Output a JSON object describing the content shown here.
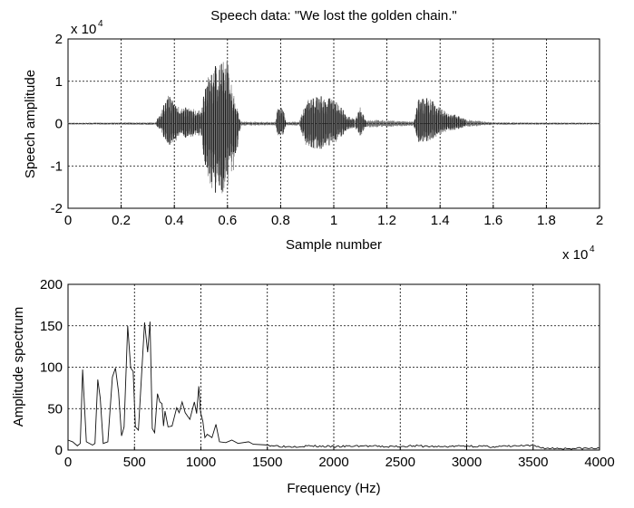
{
  "chart_data": [
    {
      "type": "line",
      "title": "Speech data: \"We lost the golden chain.\"",
      "xlabel": "Sample number",
      "ylabel": "Speech amplitude",
      "x_multiplier": "x 10",
      "x_multiplier_exp": "4",
      "y_multiplier": "x 10",
      "y_multiplier_exp": "4",
      "xlim": [
        0,
        2
      ],
      "ylim": [
        -2,
        2
      ],
      "xticks": [
        "0",
        "0.2",
        "0.4",
        "0.6",
        "0.8",
        "1",
        "1.2",
        "1.4",
        "1.6",
        "1.8",
        "2"
      ],
      "yticks": [
        "-2",
        "-1",
        "0",
        "1",
        "2"
      ],
      "grid": true,
      "envelope_note_units": "x in 10^4 samples, amplitude in 10^4",
      "envelope": [
        [
          0.0,
          0.02,
          -0.02
        ],
        [
          0.33,
          0.03,
          -0.03
        ],
        [
          0.35,
          0.3,
          -0.2
        ],
        [
          0.38,
          0.7,
          -0.55
        ],
        [
          0.42,
          0.4,
          -0.35
        ],
        [
          0.48,
          0.35,
          -0.3
        ],
        [
          0.5,
          0.3,
          -0.3
        ],
        [
          0.52,
          1.0,
          -1.2
        ],
        [
          0.56,
          1.5,
          -1.8
        ],
        [
          0.6,
          1.55,
          -1.55
        ],
        [
          0.63,
          0.5,
          -1.0
        ],
        [
          0.65,
          0.05,
          -0.05
        ],
        [
          0.78,
          0.04,
          -0.04
        ],
        [
          0.79,
          0.4,
          -0.3
        ],
        [
          0.81,
          0.4,
          -0.3
        ],
        [
          0.82,
          0.04,
          -0.04
        ],
        [
          0.87,
          0.05,
          -0.05
        ],
        [
          0.9,
          0.6,
          -0.6
        ],
        [
          0.95,
          0.65,
          -0.6
        ],
        [
          1.0,
          0.6,
          -0.5
        ],
        [
          1.05,
          0.2,
          -0.15
        ],
        [
          1.08,
          0.1,
          -0.1
        ],
        [
          1.1,
          0.4,
          -0.3
        ],
        [
          1.12,
          0.1,
          -0.1
        ],
        [
          1.3,
          0.05,
          -0.05
        ],
        [
          1.32,
          0.6,
          -0.45
        ],
        [
          1.36,
          0.6,
          -0.4
        ],
        [
          1.42,
          0.3,
          -0.2
        ],
        [
          1.5,
          0.1,
          -0.08
        ],
        [
          1.6,
          0.03,
          -0.03
        ],
        [
          2.0,
          0.02,
          -0.02
        ]
      ]
    },
    {
      "type": "line",
      "xlabel": "Frequency (Hz)",
      "ylabel": "Amplitude spectrum",
      "xlim": [
        0,
        4000
      ],
      "ylim": [
        0,
        200
      ],
      "xticks": [
        "0",
        "500",
        "1000",
        "1500",
        "2000",
        "2500",
        "3000",
        "3500",
        "4000"
      ],
      "yticks": [
        "0",
        "50",
        "100",
        "150",
        "200"
      ],
      "grid": true,
      "x": [
        0,
        35,
        70,
        92,
        110,
        138,
        184,
        203,
        224,
        242,
        265,
        300,
        334,
        357,
        380,
        403,
        422,
        449,
        472,
        490,
        507,
        530,
        576,
        599,
        617,
        634,
        652,
        673,
        691,
        707,
        719,
        730,
        753,
        783,
        818,
        836,
        859,
        882,
        917,
        951,
        968,
        984,
        998,
        1014,
        1030,
        1048,
        1083,
        1113,
        1140,
        1187,
        1233,
        1279,
        1359,
        1394,
        1509,
        1647,
        1800,
        2000,
        2200,
        2400,
        2600,
        2800,
        3000,
        3200,
        3400,
        3500,
        3600,
        3800,
        4000
      ],
      "y": [
        12,
        10,
        5,
        8,
        97,
        10,
        6,
        8,
        85,
        63,
        8,
        10,
        88,
        99,
        70,
        17,
        28,
        150,
        99,
        95,
        28,
        24,
        154,
        118,
        155,
        26,
        21,
        68,
        58,
        56,
        29,
        47,
        28,
        29,
        51,
        45,
        58,
        45,
        37,
        58,
        44,
        77,
        45,
        35,
        15,
        19,
        15,
        31,
        10,
        9,
        12,
        8,
        10,
        7,
        6,
        4,
        5,
        4,
        5,
        4,
        5,
        4,
        5,
        4,
        5,
        5,
        2,
        2,
        2
      ]
    }
  ]
}
